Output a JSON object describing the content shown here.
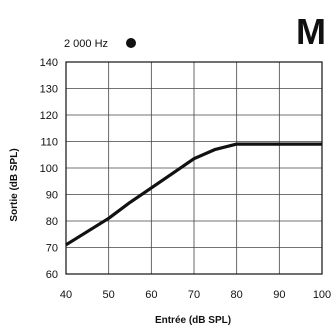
{
  "corner_mark": "M",
  "legend": {
    "label": "2 000 Hz",
    "marker": "filled-circle"
  },
  "chart_data": {
    "type": "line",
    "xlabel": "Entrée (dB SPL)",
    "ylabel": "Sortie (dB SPL)",
    "xlim": [
      40,
      100
    ],
    "ylim": [
      60,
      140
    ],
    "xticks": [
      40,
      50,
      60,
      70,
      80,
      90,
      100
    ],
    "yticks": [
      60,
      70,
      80,
      90,
      100,
      110,
      120,
      130,
      140
    ],
    "grid": true,
    "series": [
      {
        "color": "#111111",
        "x": [
          40,
          50,
          55,
          60,
          65,
          70,
          75,
          80,
          100
        ],
        "y": [
          71,
          81,
          87,
          92.5,
          98,
          103.5,
          107,
          109,
          109
        ]
      }
    ]
  }
}
